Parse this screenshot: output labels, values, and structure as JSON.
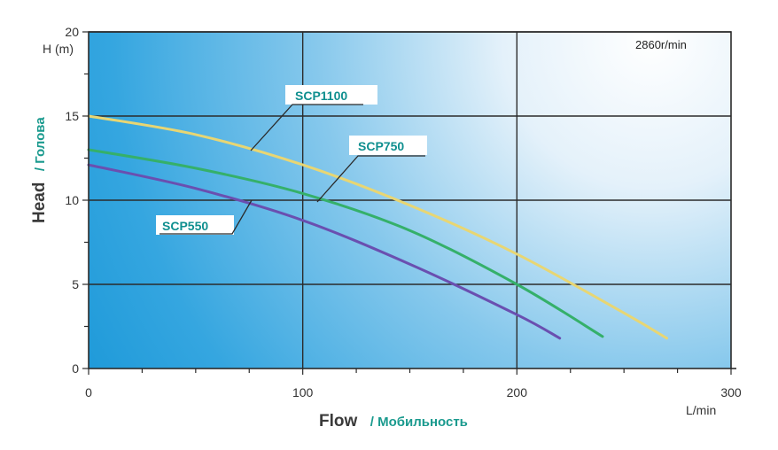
{
  "chart_data": {
    "type": "line",
    "speed_label": "2860r/min",
    "x_unit": "L/min",
    "y_unit": "H (m)",
    "xlabel": "Flow",
    "xlabel_sub": "/ Мобильность",
    "ylabel": "Head",
    "ylabel_sub": "/ Голова",
    "xlim": [
      0,
      300
    ],
    "ylim": [
      0,
      20
    ],
    "xticks": [
      0,
      100,
      200,
      300
    ],
    "yticks": [
      0,
      5,
      10,
      15,
      20
    ],
    "grid": true,
    "series": [
      {
        "name": "SCP1100",
        "color": "#e8d673",
        "x": [
          0,
          50,
          100,
          150,
          200,
          250,
          270
        ],
        "y": [
          15.0,
          13.9,
          12.1,
          9.7,
          6.8,
          3.3,
          1.8
        ]
      },
      {
        "name": "SCP750",
        "color": "#35b06a",
        "x": [
          0,
          50,
          100,
          150,
          200,
          240
        ],
        "y": [
          13.0,
          11.9,
          10.4,
          8.2,
          5.0,
          1.9
        ]
      },
      {
        "name": "SCP550",
        "color": "#6a4fb0",
        "x": [
          0,
          50,
          100,
          150,
          200,
          220
        ],
        "y": [
          12.1,
          10.7,
          8.8,
          6.2,
          3.2,
          1.8
        ]
      }
    ]
  }
}
